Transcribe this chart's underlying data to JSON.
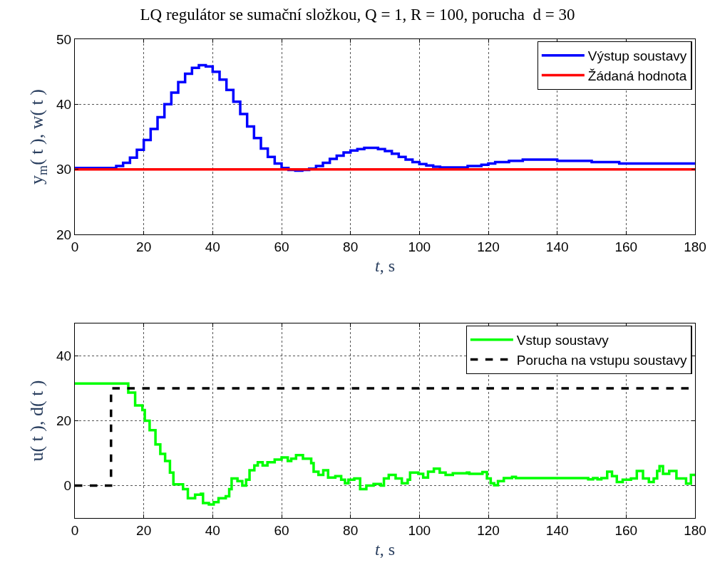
{
  "chart_data": [
    {
      "type": "step",
      "title": "LQ regulátor se sumační složkou, Q = 1, R = 100, porucha  d = 30",
      "xlabel": "t, s",
      "ylabel": "y$_{m}$( t ), w( t )",
      "xlim": [
        0,
        180
      ],
      "xticks": [
        0,
        20,
        40,
        60,
        80,
        100,
        120,
        140,
        160,
        180
      ],
      "ylim": [
        20,
        50
      ],
      "yticks": [
        20,
        30,
        40,
        50
      ],
      "grid": true,
      "legend": "top right",
      "line_style": "solid",
      "series": [
        {
          "name": "Výstup soustavy",
          "color": "#0000ff",
          "x": [
            0,
            10,
            12,
            14,
            16,
            18,
            20,
            22,
            24,
            26,
            28,
            30,
            32,
            34,
            36,
            38,
            40,
            42,
            44,
            46,
            48,
            50,
            52,
            54,
            56,
            58,
            60,
            62,
            64,
            66,
            68,
            70,
            72,
            74,
            76,
            78,
            80,
            82,
            84,
            86,
            88,
            90,
            92,
            94,
            96,
            98,
            100,
            102,
            104,
            106,
            110,
            114,
            118,
            120,
            122,
            126,
            130,
            138,
            140,
            150,
            158,
            180
          ],
          "values": [
            30.2,
            30.2,
            30.5,
            31.0,
            31.8,
            33.0,
            34.5,
            36.2,
            38.0,
            40.0,
            41.8,
            43.4,
            44.7,
            45.6,
            46.0,
            45.8,
            45.0,
            43.8,
            42.2,
            40.4,
            38.5,
            36.6,
            34.8,
            33.2,
            31.9,
            30.9,
            30.2,
            29.9,
            29.8,
            29.9,
            30.1,
            30.5,
            31.0,
            31.6,
            32.1,
            32.6,
            32.9,
            33.1,
            33.3,
            33.3,
            33.1,
            32.8,
            32.4,
            31.9,
            31.5,
            31.1,
            30.8,
            30.6,
            30.4,
            30.3,
            30.3,
            30.5,
            30.7,
            30.9,
            31.1,
            31.3,
            31.5,
            31.5,
            31.3,
            31.1,
            30.9,
            30.9
          ]
        },
        {
          "name": "Žádaná hodnota",
          "color": "#ff0000",
          "x": [
            0,
            180
          ],
          "values": [
            30,
            30
          ]
        }
      ]
    },
    {
      "type": "step",
      "xlabel": "t, s",
      "ylabel": "u( t ), d( t )",
      "xlim": [
        0,
        180
      ],
      "xticks": [
        0,
        20,
        40,
        60,
        80,
        100,
        120,
        140,
        160,
        180
      ],
      "ylim": [
        -10,
        50
      ],
      "yticks": [
        0,
        20,
        40
      ],
      "grid": true,
      "legend": "top right",
      "series": [
        {
          "name": "Vstup soustavy",
          "color": "#00ff00",
          "line_style": "solid",
          "x": [
            0,
            15,
            15.5,
            17.5,
            19.6,
            20.3,
            21.7,
            23.4,
            24.8,
            26.2,
            27.6,
            28.6,
            31.4,
            32.8,
            34.9,
            36.6,
            37.2,
            38.9,
            40.3,
            41.7,
            43.8,
            44.8,
            45.5,
            47.2,
            48.6,
            49.7,
            50.7,
            52.1,
            53.1,
            54.5,
            55.9,
            58,
            60,
            61.8,
            62.8,
            64.2,
            66.2,
            68.6,
            69.3,
            70.7,
            72.1,
            73.5,
            75.6,
            77.3,
            78.4,
            79.4,
            81.1,
            82.8,
            84.6,
            86.7,
            88.8,
            89.7,
            91.1,
            93.1,
            94.9,
            96.6,
            97.3,
            99.7,
            101.1,
            102.5,
            104.2,
            105.9,
            107.6,
            109.7,
            113.8,
            114.5,
            118.3,
            119.6,
            120.7,
            121.7,
            122.8,
            124.5,
            126.9,
            128,
            148.3,
            149,
            150.4,
            151.7,
            152.8,
            154.5,
            155.9,
            157.3,
            159,
            161.4,
            163.1,
            164.9,
            166.6,
            168,
            169,
            169.7,
            170.7,
            172.5,
            174.6,
            177.4,
            178.8,
            180
          ],
          "values": [
            31.5,
            31.5,
            28.7,
            24.7,
            23.3,
            20,
            17.1,
            12.7,
            9.8,
            7.6,
            4.0,
            0.4,
            -1.1,
            -3.9,
            -2.8,
            -2.5,
            -5.4,
            -5.8,
            -5.1,
            -3.9,
            -3.3,
            -1.1,
            2.2,
            1.4,
            0,
            1.8,
            4.7,
            6.2,
            7.2,
            6.2,
            7.2,
            8,
            8.7,
            7.6,
            8.3,
            9.4,
            8.3,
            6.9,
            4.3,
            3.3,
            4.7,
            2.5,
            2.9,
            1.8,
            0.7,
            1.8,
            2.2,
            -1.1,
            0,
            0.5,
            0,
            2.2,
            3.3,
            2.2,
            0.7,
            1.8,
            4.0,
            3.6,
            2.5,
            4.3,
            5.2,
            4.0,
            3.3,
            3.8,
            4.0,
            3.6,
            4.2,
            2.2,
            0.7,
            0.1,
            1.4,
            2.3,
            2.7,
            2.3,
            2.3,
            1.9,
            2.3,
            1.9,
            2.3,
            4.3,
            2.9,
            1.1,
            1.8,
            2.2,
            4.5,
            2.2,
            1.1,
            2.2,
            4.5,
            6.0,
            3.6,
            4.5,
            2.2,
            0.6,
            3.3,
            3.3
          ]
        },
        {
          "name": "Porucha na vstupu soustavy",
          "color": "#000000",
          "line_style": "dashed",
          "x": [
            0,
            10.5,
            180
          ],
          "values": [
            0,
            30,
            30
          ]
        }
      ]
    }
  ]
}
